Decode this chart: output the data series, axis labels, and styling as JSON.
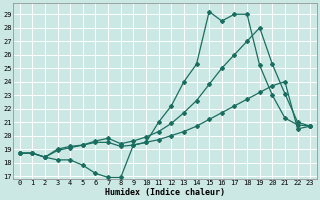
{
  "xlabel": "Humidex (Indice chaleur)",
  "bg_color": "#cce8e4",
  "line_color": "#1a6e60",
  "grid_color": "#ffffff",
  "xlim": [
    -0.5,
    23.5
  ],
  "ylim": [
    16.8,
    29.8
  ],
  "xticks": [
    0,
    1,
    2,
    3,
    4,
    5,
    6,
    7,
    8,
    9,
    10,
    11,
    12,
    13,
    14,
    15,
    16,
    17,
    18,
    19,
    20,
    21,
    22,
    23
  ],
  "yticks": [
    17,
    18,
    19,
    20,
    21,
    22,
    23,
    24,
    25,
    26,
    27,
    28,
    29
  ],
  "series": [
    [
      18.7,
      18.7,
      18.4,
      18.2,
      18.2,
      17.8,
      17.2,
      16.9,
      16.9,
      19.3,
      19.5,
      21.0,
      22.2,
      24.0,
      25.3,
      29.2,
      28.5,
      29.0,
      29.0,
      25.2,
      23.0,
      21.3,
      20.8,
      20.7
    ],
    [
      18.7,
      18.7,
      18.4,
      18.9,
      19.1,
      19.3,
      19.5,
      19.5,
      19.2,
      19.3,
      19.5,
      19.7,
      20.0,
      20.3,
      20.7,
      21.2,
      21.7,
      22.2,
      22.7,
      23.2,
      23.7,
      24.0,
      20.5,
      20.7
    ],
    [
      18.7,
      18.7,
      18.4,
      19.0,
      19.2,
      19.3,
      19.6,
      19.8,
      19.4,
      19.6,
      19.9,
      20.3,
      20.9,
      21.7,
      22.6,
      23.8,
      25.0,
      26.0,
      27.0,
      28.0,
      25.3,
      23.1,
      21.0,
      20.7
    ]
  ]
}
